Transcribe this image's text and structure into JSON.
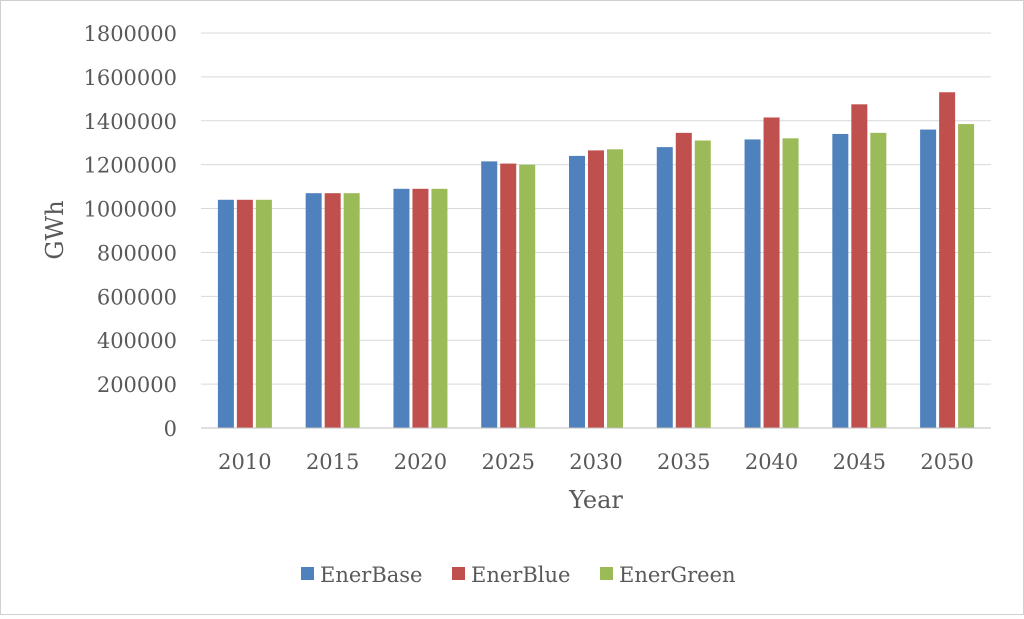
{
  "chart_data": {
    "type": "bar",
    "title": "",
    "xlabel": "Year",
    "ylabel": "GWh",
    "categories": [
      "2010",
      "2015",
      "2020",
      "2025",
      "2030",
      "2035",
      "2040",
      "2045",
      "2050"
    ],
    "ylim": [
      0,
      1800000
    ],
    "yticks": [
      "0",
      "200000",
      "400000",
      "600000",
      "800000",
      "1000000",
      "1200000",
      "1400000",
      "1600000",
      "1800000"
    ],
    "grid": true,
    "legend_position": "bottom",
    "series": [
      {
        "name": "EnerBase",
        "color": "#4f81bd",
        "values": [
          1040000,
          1070000,
          1090000,
          1215000,
          1240000,
          1280000,
          1315000,
          1340000,
          1360000
        ]
      },
      {
        "name": "EnerBlue",
        "color": "#c0504d",
        "values": [
          1040000,
          1070000,
          1090000,
          1205000,
          1265000,
          1345000,
          1415000,
          1475000,
          1530000
        ]
      },
      {
        "name": "EnerGreen",
        "color": "#9bbb59",
        "values": [
          1040000,
          1070000,
          1090000,
          1200000,
          1270000,
          1310000,
          1320000,
          1345000,
          1385000
        ]
      }
    ]
  }
}
